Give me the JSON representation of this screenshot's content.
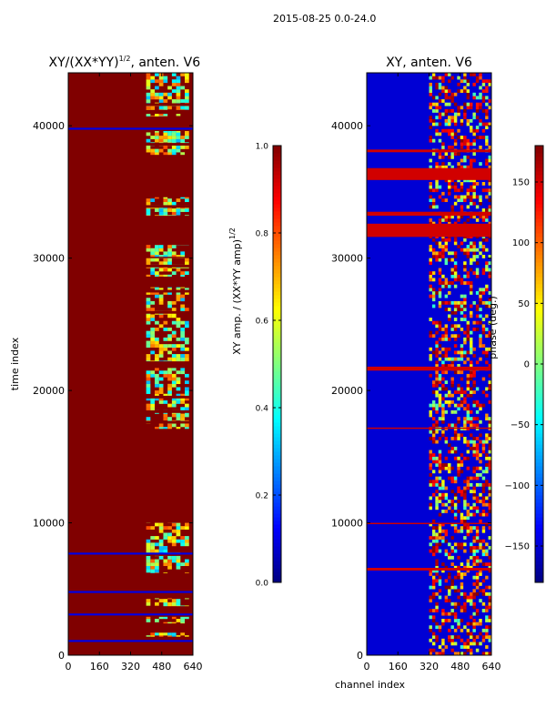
{
  "figure": {
    "suptitle": "2015-08-25 0.0-24.0"
  },
  "chart_data": [
    {
      "type": "heatmap",
      "title": "XY/(XX*YY)^1/2, anten. V6",
      "title_main": "XY/(XX*YY)",
      "title_exp": "1/2",
      "title_tail": ", anten. V6",
      "xlabel": "",
      "ylabel": "time index",
      "xlim": [
        0,
        640
      ],
      "ylim": [
        0,
        44000
      ],
      "xticks": [
        0,
        160,
        320,
        480,
        640
      ],
      "yticks": [
        0,
        10000,
        20000,
        30000,
        40000
      ],
      "colormap": "jet",
      "colorbar": {
        "label": "XY amp. / (XX*YY amp)^1/2",
        "label_main": "XY amp. / (XX*YY amp)",
        "label_exp": "1/2",
        "range": [
          0.0,
          1.0
        ],
        "ticks": [
          0.0,
          0.2,
          0.4,
          0.6,
          0.8,
          1.0
        ],
        "tick_labels": [
          "0.0",
          "0.2",
          "0.4",
          "0.6",
          "0.8",
          "1.0"
        ]
      },
      "dominant_value": 1.0,
      "noise_value": 0.15,
      "bright_channel_range": [
        400,
        620
      ],
      "saturated_bands": [
        [
          0,
          1400
        ],
        [
          1700,
          2400
        ],
        [
          2900,
          3700
        ],
        [
          4300,
          6200
        ],
        [
          7500,
          7700
        ],
        [
          10000,
          17100
        ],
        [
          17500,
          17700
        ],
        [
          18300,
          18500
        ],
        [
          19400,
          19600
        ],
        [
          21700,
          22200
        ],
        [
          25800,
          26000
        ],
        [
          27400,
          27600
        ],
        [
          27800,
          28600
        ],
        [
          29300,
          29500
        ],
        [
          30000,
          30100
        ],
        [
          31000,
          33200
        ],
        [
          33800,
          34000
        ],
        [
          34600,
          37800
        ],
        [
          38500,
          38700
        ],
        [
          39600,
          40700
        ],
        [
          40900,
          41200
        ],
        [
          41500,
          41700
        ]
      ]
    },
    {
      "type": "heatmap",
      "title": "XY, anten. V6",
      "xlabel": "channel index",
      "ylabel": "",
      "xlim": [
        0,
        640
      ],
      "ylim": [
        0,
        44000
      ],
      "xticks": [
        0,
        160,
        320,
        480,
        640
      ],
      "yticks": [
        0,
        10000,
        20000,
        30000,
        40000
      ],
      "colormap": "jet",
      "colorbar": {
        "label": "phase (deg.)",
        "range": [
          -180,
          180
        ],
        "ticks": [
          -150,
          -100,
          -50,
          0,
          50,
          100,
          150
        ],
        "tick_labels": [
          "−150",
          "−100",
          "−50",
          "0",
          "50",
          "100",
          "150"
        ]
      },
      "dominant_value": -150,
      "bright_channel_range": [
        320,
        640
      ],
      "saturated_bands": [
        [
          31600,
          32600
        ],
        [
          35900,
          36800
        ],
        [
          38000,
          38200
        ],
        [
          33200,
          33500
        ],
        [
          9900,
          10000
        ],
        [
          6400,
          6600
        ],
        [
          17100,
          17200
        ],
        [
          21500,
          21800
        ]
      ]
    }
  ]
}
